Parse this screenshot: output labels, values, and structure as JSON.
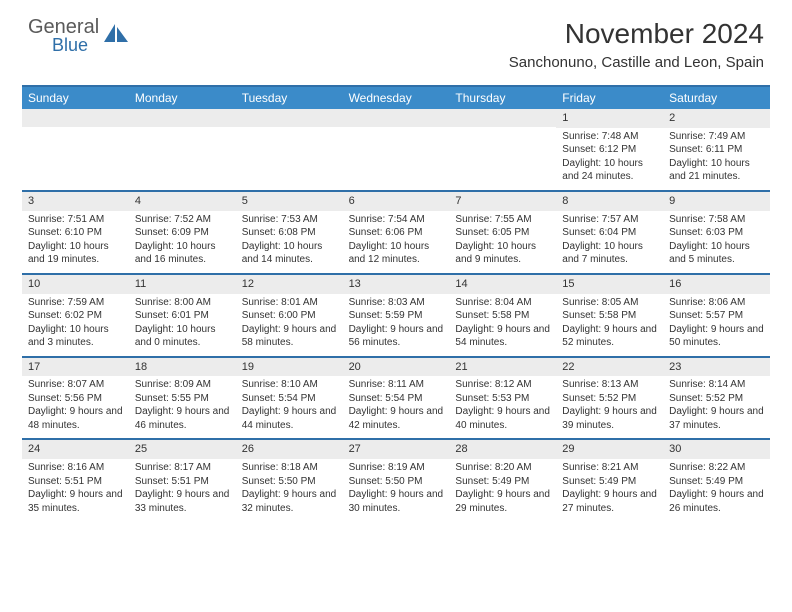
{
  "brand": {
    "word1": "General",
    "word2": "Blue"
  },
  "title": "November 2024",
  "location": "Sanchonuno, Castille and Leon, Spain",
  "colors": {
    "header_bg": "#3b8bc9",
    "rule": "#2f6fa8",
    "num_bg": "#ececec",
    "text": "#333333",
    "white": "#ffffff"
  },
  "dayNames": [
    "Sunday",
    "Monday",
    "Tuesday",
    "Wednesday",
    "Thursday",
    "Friday",
    "Saturday"
  ],
  "weeks": [
    [
      {
        "n": "",
        "lines": []
      },
      {
        "n": "",
        "lines": []
      },
      {
        "n": "",
        "lines": []
      },
      {
        "n": "",
        "lines": []
      },
      {
        "n": "",
        "lines": []
      },
      {
        "n": "1",
        "lines": [
          "Sunrise: 7:48 AM",
          "Sunset: 6:12 PM",
          "Daylight: 10 hours and 24 minutes."
        ]
      },
      {
        "n": "2",
        "lines": [
          "Sunrise: 7:49 AM",
          "Sunset: 6:11 PM",
          "Daylight: 10 hours and 21 minutes."
        ]
      }
    ],
    [
      {
        "n": "3",
        "lines": [
          "Sunrise: 7:51 AM",
          "Sunset: 6:10 PM",
          "Daylight: 10 hours and 19 minutes."
        ]
      },
      {
        "n": "4",
        "lines": [
          "Sunrise: 7:52 AM",
          "Sunset: 6:09 PM",
          "Daylight: 10 hours and 16 minutes."
        ]
      },
      {
        "n": "5",
        "lines": [
          "Sunrise: 7:53 AM",
          "Sunset: 6:08 PM",
          "Daylight: 10 hours and 14 minutes."
        ]
      },
      {
        "n": "6",
        "lines": [
          "Sunrise: 7:54 AM",
          "Sunset: 6:06 PM",
          "Daylight: 10 hours and 12 minutes."
        ]
      },
      {
        "n": "7",
        "lines": [
          "Sunrise: 7:55 AM",
          "Sunset: 6:05 PM",
          "Daylight: 10 hours and 9 minutes."
        ]
      },
      {
        "n": "8",
        "lines": [
          "Sunrise: 7:57 AM",
          "Sunset: 6:04 PM",
          "Daylight: 10 hours and 7 minutes."
        ]
      },
      {
        "n": "9",
        "lines": [
          "Sunrise: 7:58 AM",
          "Sunset: 6:03 PM",
          "Daylight: 10 hours and 5 minutes."
        ]
      }
    ],
    [
      {
        "n": "10",
        "lines": [
          "Sunrise: 7:59 AM",
          "Sunset: 6:02 PM",
          "Daylight: 10 hours and 3 minutes."
        ]
      },
      {
        "n": "11",
        "lines": [
          "Sunrise: 8:00 AM",
          "Sunset: 6:01 PM",
          "Daylight: 10 hours and 0 minutes."
        ]
      },
      {
        "n": "12",
        "lines": [
          "Sunrise: 8:01 AM",
          "Sunset: 6:00 PM",
          "Daylight: 9 hours and 58 minutes."
        ]
      },
      {
        "n": "13",
        "lines": [
          "Sunrise: 8:03 AM",
          "Sunset: 5:59 PM",
          "Daylight: 9 hours and 56 minutes."
        ]
      },
      {
        "n": "14",
        "lines": [
          "Sunrise: 8:04 AM",
          "Sunset: 5:58 PM",
          "Daylight: 9 hours and 54 minutes."
        ]
      },
      {
        "n": "15",
        "lines": [
          "Sunrise: 8:05 AM",
          "Sunset: 5:58 PM",
          "Daylight: 9 hours and 52 minutes."
        ]
      },
      {
        "n": "16",
        "lines": [
          "Sunrise: 8:06 AM",
          "Sunset: 5:57 PM",
          "Daylight: 9 hours and 50 minutes."
        ]
      }
    ],
    [
      {
        "n": "17",
        "lines": [
          "Sunrise: 8:07 AM",
          "Sunset: 5:56 PM",
          "Daylight: 9 hours and 48 minutes."
        ]
      },
      {
        "n": "18",
        "lines": [
          "Sunrise: 8:09 AM",
          "Sunset: 5:55 PM",
          "Daylight: 9 hours and 46 minutes."
        ]
      },
      {
        "n": "19",
        "lines": [
          "Sunrise: 8:10 AM",
          "Sunset: 5:54 PM",
          "Daylight: 9 hours and 44 minutes."
        ]
      },
      {
        "n": "20",
        "lines": [
          "Sunrise: 8:11 AM",
          "Sunset: 5:54 PM",
          "Daylight: 9 hours and 42 minutes."
        ]
      },
      {
        "n": "21",
        "lines": [
          "Sunrise: 8:12 AM",
          "Sunset: 5:53 PM",
          "Daylight: 9 hours and 40 minutes."
        ]
      },
      {
        "n": "22",
        "lines": [
          "Sunrise: 8:13 AM",
          "Sunset: 5:52 PM",
          "Daylight: 9 hours and 39 minutes."
        ]
      },
      {
        "n": "23",
        "lines": [
          "Sunrise: 8:14 AM",
          "Sunset: 5:52 PM",
          "Daylight: 9 hours and 37 minutes."
        ]
      }
    ],
    [
      {
        "n": "24",
        "lines": [
          "Sunrise: 8:16 AM",
          "Sunset: 5:51 PM",
          "Daylight: 9 hours and 35 minutes."
        ]
      },
      {
        "n": "25",
        "lines": [
          "Sunrise: 8:17 AM",
          "Sunset: 5:51 PM",
          "Daylight: 9 hours and 33 minutes."
        ]
      },
      {
        "n": "26",
        "lines": [
          "Sunrise: 8:18 AM",
          "Sunset: 5:50 PM",
          "Daylight: 9 hours and 32 minutes."
        ]
      },
      {
        "n": "27",
        "lines": [
          "Sunrise: 8:19 AM",
          "Sunset: 5:50 PM",
          "Daylight: 9 hours and 30 minutes."
        ]
      },
      {
        "n": "28",
        "lines": [
          "Sunrise: 8:20 AM",
          "Sunset: 5:49 PM",
          "Daylight: 9 hours and 29 minutes."
        ]
      },
      {
        "n": "29",
        "lines": [
          "Sunrise: 8:21 AM",
          "Sunset: 5:49 PM",
          "Daylight: 9 hours and 27 minutes."
        ]
      },
      {
        "n": "30",
        "lines": [
          "Sunrise: 8:22 AM",
          "Sunset: 5:49 PM",
          "Daylight: 9 hours and 26 minutes."
        ]
      }
    ]
  ]
}
